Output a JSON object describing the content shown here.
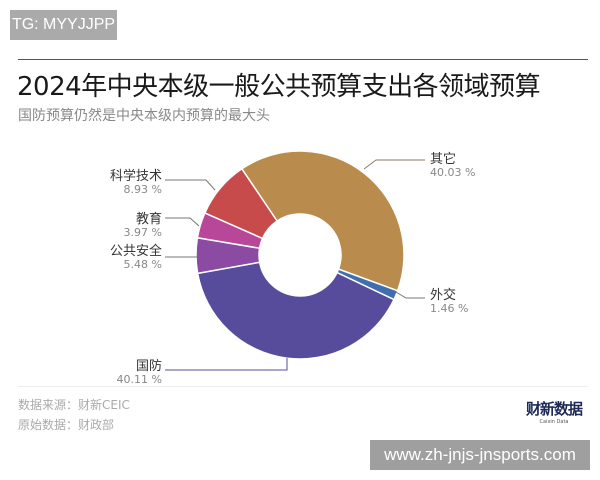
{
  "tag": "TG: MYYJJPP",
  "title": "2024年中央本级一般公共预算支出各领域预算",
  "subtitle": "国防预算仍然是中央本级内预算的最大头",
  "chart_data": {
    "type": "pie",
    "donut": true,
    "title": "2024年中央本级一般公共预算支出各领域预算",
    "subtitle": "国防预算仍然是中央本级内预算的最大头",
    "slices": [
      {
        "label": "其它",
        "value": 40.03,
        "display": "40.03 %",
        "color": "#b98b4c"
      },
      {
        "label": "外交",
        "value": 1.46,
        "display": "1.46 %",
        "color": "#3f6fae"
      },
      {
        "label": "国防",
        "value": 40.11,
        "display": "40.11 %",
        "color": "#574c9c"
      },
      {
        "label": "公共安全",
        "value": 5.48,
        "display": "5.48 %",
        "color": "#8b4ba2"
      },
      {
        "label": "教育",
        "value": 3.97,
        "display": "3.97 %",
        "color": "#b8479a"
      },
      {
        "label": "科学技术",
        "value": 8.93,
        "display": "8.93 %",
        "color": "#c74b4b"
      }
    ]
  },
  "footer": {
    "source": "数据来源：财新CEIC",
    "original": "原始数据：财政部",
    "logo_text": "财新数据",
    "logo_sub": "Caixin Data"
  },
  "url": "www.zh-jnjs-jnsports.com"
}
